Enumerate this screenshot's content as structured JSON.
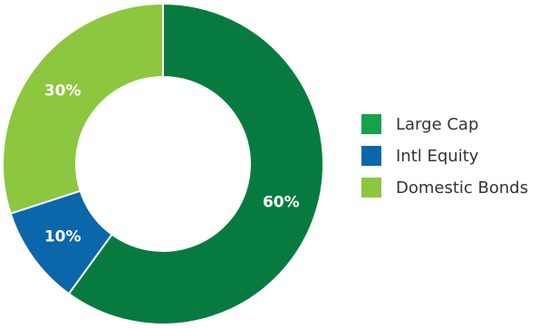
{
  "chart_data": {
    "type": "pie",
    "variant": "donut",
    "categories": [
      "Large Cap",
      "Intl Equity",
      "Domestic Bonds"
    ],
    "values": [
      60,
      10,
      30
    ],
    "labels": [
      "60%",
      "10%",
      "30%"
    ],
    "colors": [
      "#077b3f",
      "#0b66aa",
      "#8dc63f"
    ],
    "legend_swatch_colors": [
      "#14a24a",
      "#0b66aa",
      "#8dc63f"
    ],
    "start_angle": "12 o'clock",
    "direction": "clockwise",
    "legend": "right",
    "title": ""
  }
}
